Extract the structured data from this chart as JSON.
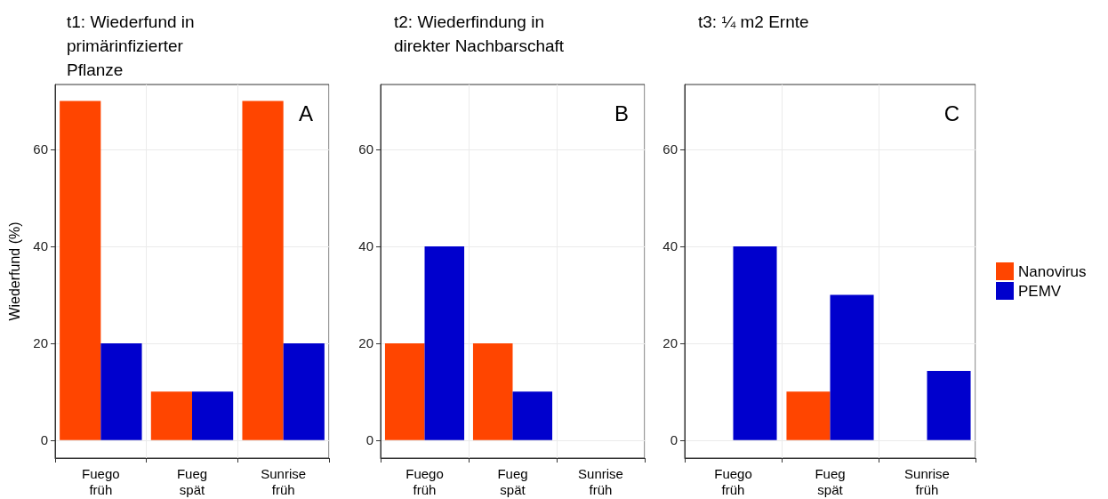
{
  "chart_data": [
    {
      "type": "bar",
      "title": "t1: Wiederfund in primärinfizierter Pflanze",
      "ylabel": "Wiederfund (%)",
      "categories": [
        "Fuego früh",
        "Fueg spät",
        "Sunrise früh"
      ],
      "series": [
        {
          "color": "#ff4500",
          "values": [
            70,
            10,
            70
          ]
        },
        {
          "color": "#0000cd",
          "values": [
            20,
            10,
            20
          ]
        }
      ],
      "ylim": [
        -3.7,
        73.4
      ],
      "yticks": [
        0,
        20,
        40,
        60
      ],
      "grid": true,
      "legend": false,
      "annotations": [
        "A"
      ]
    },
    {
      "type": "bar",
      "title": "t2: Wiederfindung in direkter Nachbarschaft",
      "categories": [
        "Fuego früh",
        "Fueg spät",
        "Sunrise früh"
      ],
      "series": [
        {
          "color": "#ff4500",
          "values": [
            20,
            20,
            0
          ]
        },
        {
          "color": "#0000cd",
          "values": [
            40,
            10,
            0
          ]
        }
      ],
      "ylim": [
        -3.7,
        73.4
      ],
      "yticks": [
        0,
        20,
        40,
        60
      ],
      "grid": true,
      "legend": false,
      "annotations": [
        "B"
      ]
    },
    {
      "type": "bar",
      "title": "t3: ¼ m2 Ernte",
      "categories": [
        "Fuego früh",
        "Fueg spät",
        "Sunrise früh"
      ],
      "series": [
        {
          "name": "Nanovirus",
          "color": "#ff4500",
          "values": [
            0,
            10,
            0
          ]
        },
        {
          "name": "PEMV",
          "color": "#0000cd",
          "values": [
            40,
            30,
            14.3
          ]
        }
      ],
      "ylim": [
        -3.7,
        73.4
      ],
      "yticks": [
        0,
        20,
        40,
        60
      ],
      "grid": true,
      "legend": "right",
      "annotations": [
        "C"
      ]
    }
  ]
}
